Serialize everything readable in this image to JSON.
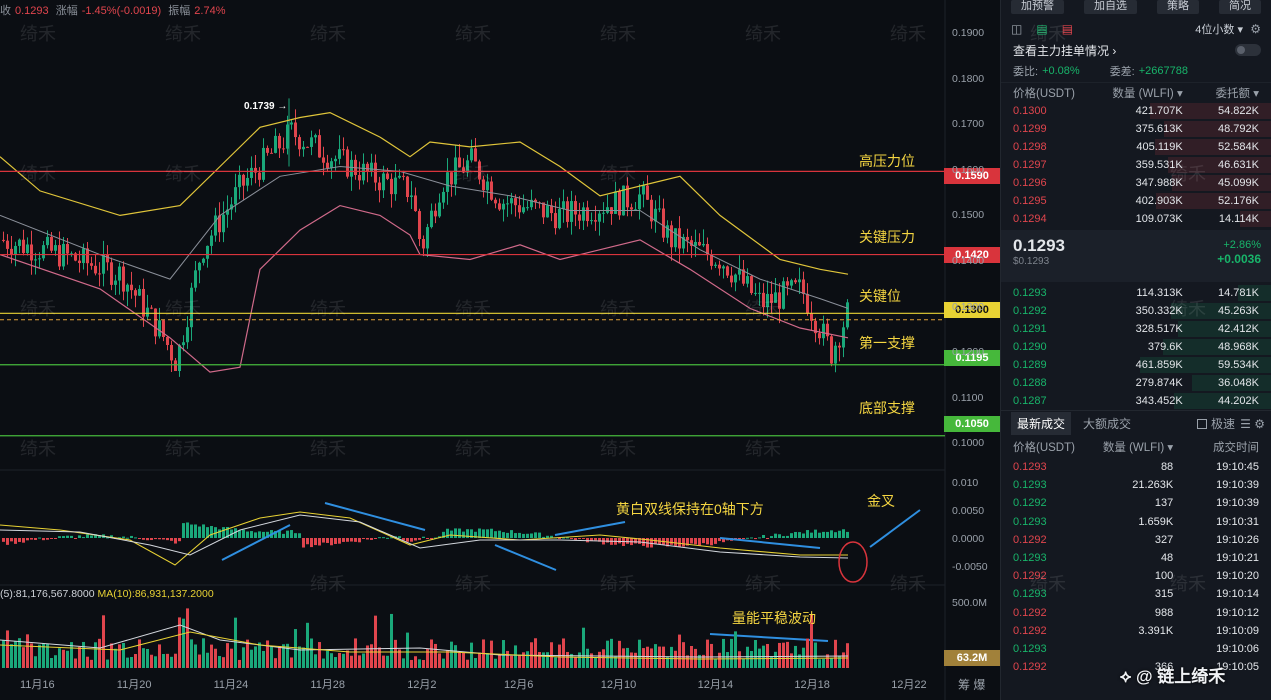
{
  "top_stats": {
    "close_label": "收",
    "close_value": "0.1293",
    "change_label": "涨幅",
    "change_value": "-1.45%(-0.0019)",
    "amplitude_label": "振幅",
    "amplitude_value": "2.74%"
  },
  "watermark_text": "绮禾",
  "high_marker": "0.1739 →",
  "annotations": {
    "high_pressure": "高压力位",
    "key_pressure": "关键压力",
    "key_level": "关键位",
    "first_support": "第一支撑",
    "bottom_support": "底部支撑",
    "macd_note": "黄白双线保持在0轴下方",
    "golden_cross": "金叉",
    "volume_note": "量能平稳波动"
  },
  "price_tags": {
    "p1590": "0.1590",
    "p1420": "0.1420",
    "p1300": "0.1300",
    "p1195": "0.1195",
    "p1050": "0.1050",
    "vol": "63.2M"
  },
  "colors": {
    "red_level": "#d9343c",
    "yellow_level": "#e8d234",
    "green_level": "#46b83b",
    "up": "#1aa87a",
    "down": "#e0454d",
    "annotation": "#f5d642",
    "boll": "#e0c53a"
  },
  "y_axis": [
    "0.1900",
    "0.1800",
    "0.1700",
    "0.1600",
    "0.1500",
    "0.1400",
    "0.1300",
    "0.1200",
    "0.1100",
    "0.1000"
  ],
  "macd_axis": [
    "0.010",
    "0.0050",
    "0.0000",
    "-0.0050"
  ],
  "vol_axis": "500.0M",
  "x_axis": [
    "11月16",
    "11月20",
    "11月24",
    "11月28",
    "12月2",
    "12月6",
    "12月10",
    "12月14",
    "12月18",
    "12月22"
  ],
  "ma_legend": {
    "ma5": "(5):81,176,567.8000",
    "ma10": "MA(10):86,931,137.2000"
  },
  "bottom_icons": "筹 爆",
  "chart_data": {
    "type": "candlestick",
    "ylim": [
      0.098,
      0.194
    ],
    "key_levels": [
      0.159,
      0.142,
      0.13,
      0.1195,
      0.105
    ],
    "period_high": 0.1739,
    "last_price": 0.1293
  },
  "panel": {
    "top_buttons": [
      "加预警",
      "加自选",
      "策略",
      "简况"
    ],
    "precision": "4位小数 ▾",
    "watch_main": "查看主力挂单情况 ›",
    "ratio_label": "委比:",
    "ratio_value": "+0.08%",
    "diff_label": "委差:",
    "diff_value": "+2667788",
    "ob_headers": [
      "价格(USDT)",
      "数量 (WLFI) ▾",
      "委托额 ▾"
    ],
    "asks": [
      [
        "0.1300",
        "421.707K",
        "54.822K"
      ],
      [
        "0.1299",
        "375.613K",
        "48.792K"
      ],
      [
        "0.1298",
        "405.119K",
        "52.584K"
      ],
      [
        "0.1297",
        "359.531K",
        "46.631K"
      ],
      [
        "0.1296",
        "347.988K",
        "45.099K"
      ],
      [
        "0.1295",
        "402.903K",
        "52.176K"
      ],
      [
        "0.1294",
        "109.073K",
        "14.114K"
      ]
    ],
    "last_price": "0.1293",
    "last_price_usd": "$0.1293",
    "change_pct": "+2.86%",
    "change_abs": "+0.0036",
    "bids": [
      [
        "0.1293",
        "114.313K",
        "14.781K"
      ],
      [
        "0.1292",
        "350.332K",
        "45.263K"
      ],
      [
        "0.1291",
        "328.517K",
        "42.412K"
      ],
      [
        "0.1290",
        "379.6K",
        "48.968K"
      ],
      [
        "0.1289",
        "461.859K",
        "59.534K"
      ],
      [
        "0.1288",
        "279.874K",
        "36.048K"
      ],
      [
        "0.1287",
        "343.452K",
        "44.202K"
      ]
    ],
    "tab_latest": "最新成交",
    "tab_large": "大额成交",
    "fast_label": "极速",
    "tr_headers": [
      "价格(USDT)",
      "数量 (WLFI) ▾",
      "成交时间"
    ],
    "trades": [
      [
        "0.1293",
        "88",
        "19:10:45",
        "red"
      ],
      [
        "0.1293",
        "21.263K",
        "19:10:39",
        "green"
      ],
      [
        "0.1292",
        "137",
        "19:10:39",
        "green"
      ],
      [
        "0.1293",
        "1.659K",
        "19:10:31",
        "green"
      ],
      [
        "0.1292",
        "327",
        "19:10:26",
        "red"
      ],
      [
        "0.1293",
        "48",
        "19:10:21",
        "green"
      ],
      [
        "0.1292",
        "100",
        "19:10:20",
        "red"
      ],
      [
        "0.1293",
        "315",
        "19:10:14",
        "green"
      ],
      [
        "0.1292",
        "988",
        "19:10:12",
        "red"
      ],
      [
        "0.1292",
        "3.391K",
        "19:10:09",
        "red"
      ],
      [
        "0.1293",
        "",
        "19:10:06",
        "green"
      ],
      [
        "0.1292",
        "366",
        "19:10:05",
        "red"
      ]
    ],
    "brand": "⟡ @ 链上绮禾"
  }
}
